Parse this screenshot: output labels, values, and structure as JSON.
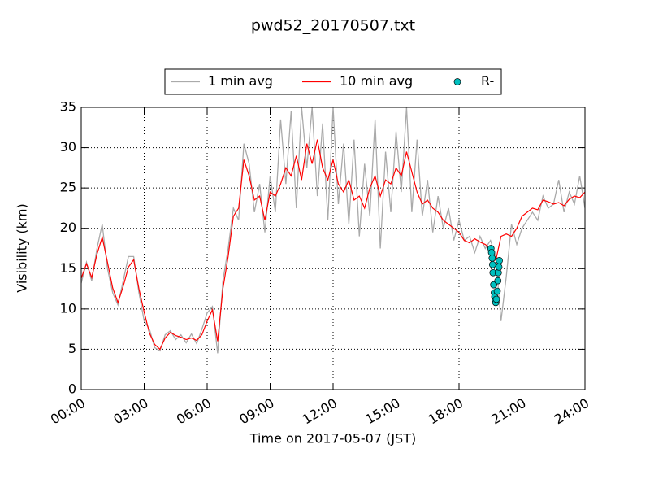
{
  "chart_data": {
    "type": "line",
    "title": "pwd52_20170507.txt",
    "xlabel": "Time on 2017-05-07 (JST)",
    "ylabel": "Visibility (km)",
    "x": [
      0,
      0.25,
      0.5,
      0.75,
      1,
      1.25,
      1.5,
      1.75,
      2,
      2.25,
      2.5,
      2.75,
      3,
      3.25,
      3.5,
      3.75,
      4,
      4.25,
      4.5,
      4.75,
      5,
      5.25,
      5.5,
      5.75,
      6,
      6.25,
      6.5,
      6.75,
      7,
      7.25,
      7.5,
      7.75,
      8,
      8.25,
      8.5,
      8.75,
      9,
      9.25,
      9.5,
      9.75,
      10,
      10.25,
      10.5,
      10.75,
      11,
      11.25,
      11.5,
      11.75,
      12,
      12.25,
      12.5,
      12.75,
      13,
      13.25,
      13.5,
      13.75,
      14,
      14.25,
      14.5,
      14.75,
      15,
      15.25,
      15.5,
      15.75,
      16,
      16.25,
      16.5,
      16.75,
      17,
      17.25,
      17.5,
      17.75,
      18,
      18.25,
      18.5,
      18.75,
      19,
      19.25,
      19.5,
      19.75,
      20,
      20.25,
      20.5,
      20.75,
      21,
      21.25,
      21.5,
      21.75,
      22,
      22.25,
      22.5,
      22.75,
      23,
      23.25,
      23.5,
      23.75,
      24
    ],
    "series": [
      {
        "name": "1 min avg",
        "color": "#aaaaaa",
        "values": [
          13.2,
          15.8,
          13.5,
          17.5,
          20.5,
          15.0,
          12.0,
          10.5,
          13.5,
          16.5,
          16.5,
          12.0,
          8.5,
          7.5,
          5.2,
          4.8,
          6.8,
          7.3,
          6.2,
          6.8,
          5.8,
          6.9,
          5.7,
          7.5,
          9.5,
          10.3,
          4.5,
          13.5,
          17.5,
          22.5,
          21.0,
          30.5,
          28.0,
          22.0,
          25.5,
          19.5,
          26.5,
          22.0,
          33.5,
          25.5,
          34.5,
          22.5,
          35,
          27.5,
          35,
          24.0,
          33.0,
          21.0,
          35,
          23.0,
          30.5,
          20.5,
          31.0,
          19.0,
          28.0,
          21.5,
          33.5,
          17.5,
          29.5,
          22.0,
          32.0,
          24.5,
          35,
          22.0,
          31.0,
          21.5,
          26.0,
          19.5,
          24.0,
          20.0,
          22.5,
          18.5,
          21.0,
          18.5,
          19.0,
          17.0,
          19.0,
          17.5,
          18.5,
          16.5,
          8.5,
          14.0,
          20.5,
          18.0,
          20.0,
          21.0,
          22.0,
          21.0,
          24.0,
          22.5,
          23.0,
          26.0,
          22.0,
          24.5,
          23.0,
          26.5,
          22.5
        ]
      },
      {
        "name": "10 min avg",
        "color": "#ff0000",
        "values": [
          13.8,
          15.6,
          13.9,
          16.8,
          18.9,
          15.8,
          12.6,
          10.8,
          12.8,
          15.2,
          16.1,
          12.5,
          9.6,
          7.0,
          5.6,
          5.0,
          6.4,
          7.1,
          6.7,
          6.5,
          6.2,
          6.4,
          6.1,
          6.8,
          8.5,
          9.9,
          6.0,
          12.5,
          16.5,
          21.5,
          22.5,
          28.5,
          26.5,
          23.5,
          24.0,
          21.0,
          24.5,
          24.0,
          25.5,
          27.5,
          26.5,
          29.0,
          26.0,
          30.5,
          28.0,
          31.0,
          27.5,
          26.0,
          28.5,
          25.5,
          24.5,
          26.0,
          23.5,
          24.0,
          22.5,
          25.0,
          26.5,
          24.0,
          26.0,
          25.5,
          27.5,
          26.5,
          29.5,
          27.0,
          24.5,
          23.0,
          23.5,
          22.5,
          22.0,
          21.0,
          20.5,
          20.0,
          19.5,
          18.5,
          18.2,
          18.7,
          18.3,
          18.0,
          17.5,
          16.0,
          19.0,
          19.3,
          19.0,
          20.0,
          21.5,
          22.0,
          22.5,
          22.3,
          23.5,
          23.3,
          23.0,
          23.2,
          22.8,
          23.6,
          24.0,
          23.8,
          24.5
        ]
      },
      {
        "name": "R-",
        "color": "#00bfbf",
        "marker": "circle",
        "x": [
          19.52,
          19.55,
          19.58,
          19.6,
          19.62,
          19.65,
          19.68,
          19.7,
          19.72,
          19.75,
          19.78,
          19.82,
          19.85,
          19.87,
          19.9,
          19.92
        ],
        "values": [
          17.5,
          17.0,
          16.3,
          15.5,
          14.5,
          13.0,
          12.0,
          11.5,
          11.0,
          10.8,
          11.2,
          12.2,
          13.5,
          14.5,
          15.2,
          16.0
        ]
      }
    ],
    "xlim": [
      0,
      24
    ],
    "xticks": [
      {
        "value": 0,
        "label": "00:00"
      },
      {
        "value": 3,
        "label": "03:00"
      },
      {
        "value": 6,
        "label": "06:00"
      },
      {
        "value": 9,
        "label": "09:00"
      },
      {
        "value": 12,
        "label": "12:00"
      },
      {
        "value": 15,
        "label": "15:00"
      },
      {
        "value": 18,
        "label": "18:00"
      },
      {
        "value": 21,
        "label": "21:00"
      },
      {
        "value": 24,
        "label": "24:00"
      }
    ],
    "ylim": [
      0,
      35
    ],
    "yticks": [
      0,
      5,
      10,
      15,
      20,
      25,
      30,
      35
    ],
    "grid": true,
    "legend": "upper center"
  }
}
